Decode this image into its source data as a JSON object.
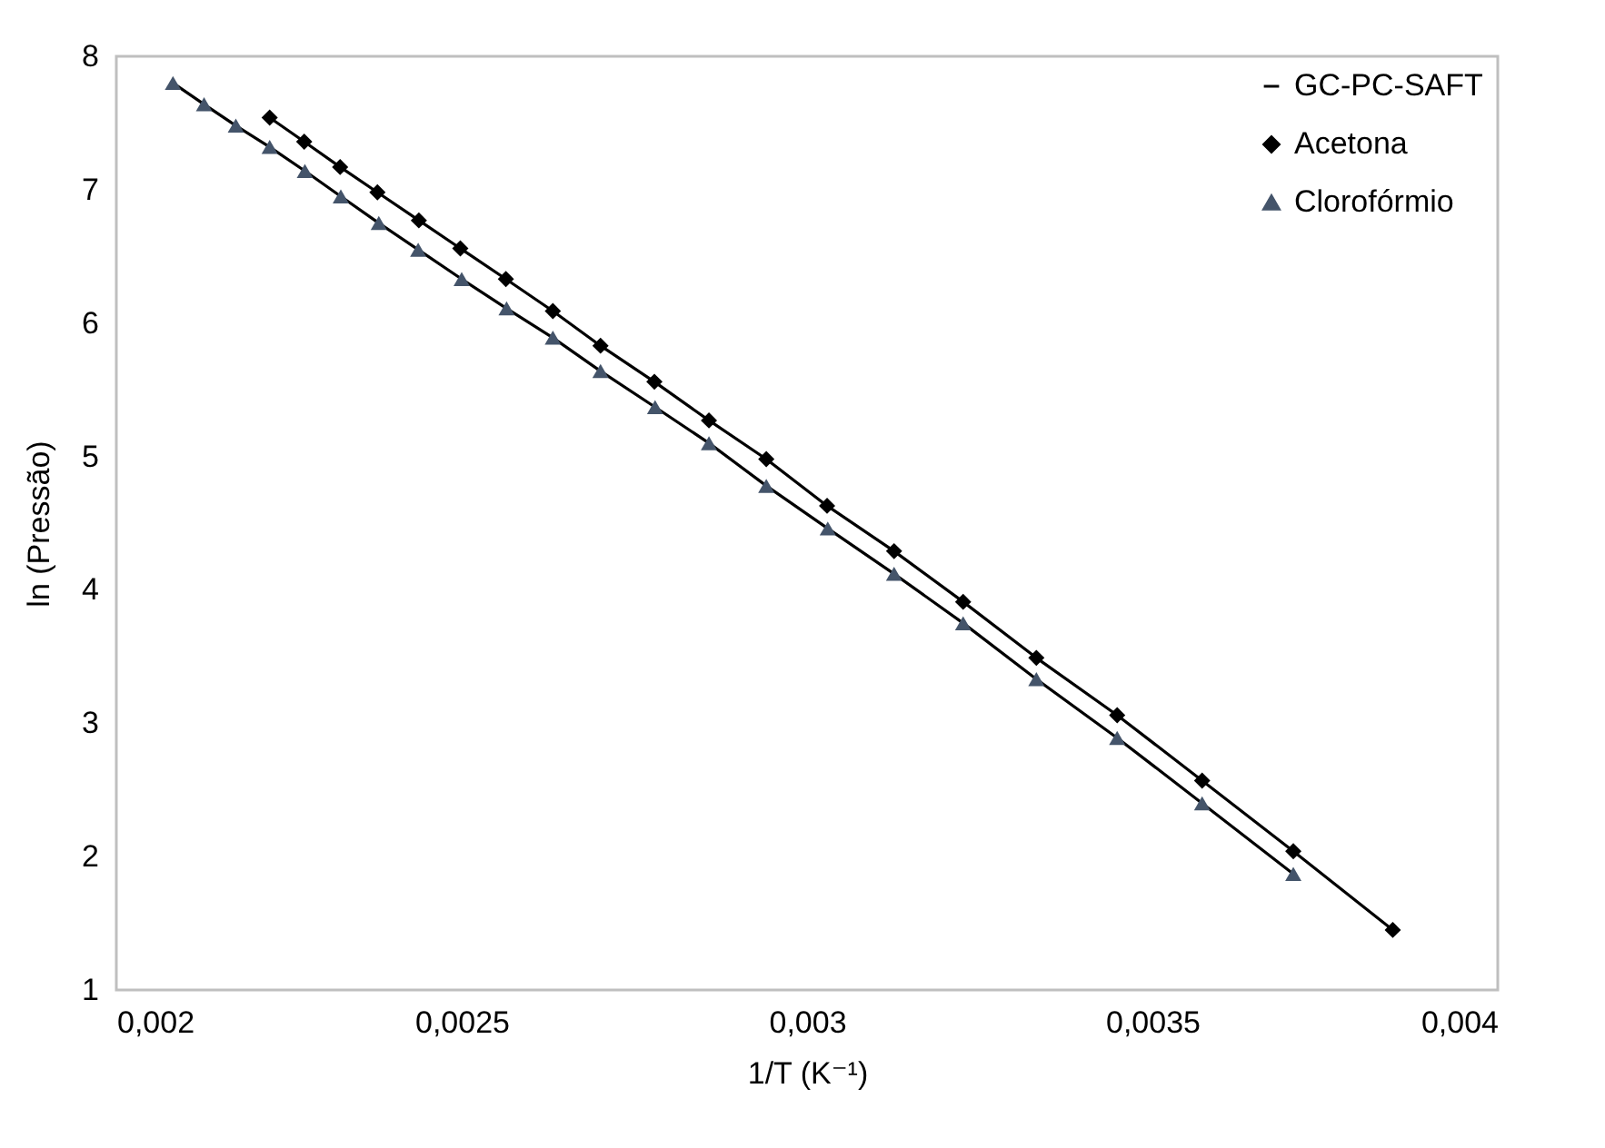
{
  "chart_data": {
    "type": "scatter",
    "xlabel": "1/T (K⁻¹)",
    "ylabel": "ln (Pressão)",
    "xlim": [
      0.002,
      0.004
    ],
    "xticks": [
      {
        "value": 0.002,
        "label": "0,002"
      },
      {
        "value": 0.0025,
        "label": "0,0025"
      },
      {
        "value": 0.003,
        "label": "0,003"
      },
      {
        "value": 0.0035,
        "label": "0,0035"
      },
      {
        "value": 0.004,
        "label": "0,004"
      }
    ],
    "ylim": [
      1,
      8
    ],
    "yticks": [
      1,
      2,
      3,
      4,
      5,
      6,
      7,
      8
    ],
    "grid": false,
    "legend": "top right",
    "series": [
      {
        "name": "GC-PC-SAFT",
        "type": "line",
        "color": "#000000",
        "marker": "none",
        "x": [
          0.002222,
          0.002272,
          0.002324,
          0.002378,
          0.002438,
          0.002498,
          0.002564,
          0.002632,
          0.002701,
          0.002779,
          0.002858,
          0.002941,
          0.003029,
          0.003126,
          0.003226,
          0.003332,
          0.003449,
          0.003572,
          0.003704,
          0.003848
        ],
        "values": [
          7.54,
          7.36,
          7.17,
          6.98,
          6.77,
          6.56,
          6.33,
          6.09,
          5.83,
          5.56,
          5.27,
          4.98,
          4.63,
          4.29,
          3.91,
          3.49,
          3.06,
          2.57,
          2.04,
          1.45
        ]
      },
      {
        "type": "line",
        "color": "#000000",
        "marker": "none",
        "x": [
          0.002082,
          0.002127,
          0.002173,
          0.002222,
          0.002273,
          0.002325,
          0.00238,
          0.002437,
          0.0025,
          0.002565,
          0.002632,
          0.002701,
          0.00278,
          0.002858,
          0.002941,
          0.00303,
          0.003126,
          0.003226,
          0.003332,
          0.003449,
          0.003572,
          0.003704
        ],
        "values": [
          7.8,
          7.64,
          7.48,
          7.32,
          7.14,
          6.95,
          6.75,
          6.55,
          6.33,
          6.11,
          5.89,
          5.64,
          5.37,
          5.1,
          4.78,
          4.46,
          4.12,
          3.75,
          3.33,
          2.89,
          2.4,
          1.87
        ]
      },
      {
        "name": "Acetona",
        "color": "#000000",
        "marker": "diamond",
        "x": [
          0.002222,
          0.002272,
          0.002324,
          0.002378,
          0.002438,
          0.002498,
          0.002564,
          0.002632,
          0.002701,
          0.002779,
          0.002858,
          0.002941,
          0.003029,
          0.003126,
          0.003226,
          0.003332,
          0.003449,
          0.003572,
          0.003704,
          0.003848
        ],
        "values": [
          7.54,
          7.36,
          7.17,
          6.98,
          6.77,
          6.56,
          6.33,
          6.09,
          5.83,
          5.56,
          5.27,
          4.98,
          4.63,
          4.29,
          3.91,
          3.49,
          3.06,
          2.57,
          2.04,
          1.45
        ]
      },
      {
        "name": "Clorofórmio",
        "color": "#44546a",
        "marker": "triangle",
        "x": [
          0.002082,
          0.002127,
          0.002173,
          0.002222,
          0.002273,
          0.002325,
          0.00238,
          0.002437,
          0.0025,
          0.002565,
          0.002632,
          0.002701,
          0.00278,
          0.002858,
          0.002941,
          0.00303,
          0.003126,
          0.003226,
          0.003332,
          0.003449,
          0.003572,
          0.003704
        ],
        "values": [
          7.8,
          7.64,
          7.48,
          7.32,
          7.14,
          6.95,
          6.75,
          6.55,
          6.33,
          6.11,
          5.89,
          5.64,
          5.37,
          5.1,
          4.78,
          4.46,
          4.12,
          3.75,
          3.33,
          2.89,
          2.4,
          1.87
        ]
      }
    ]
  }
}
